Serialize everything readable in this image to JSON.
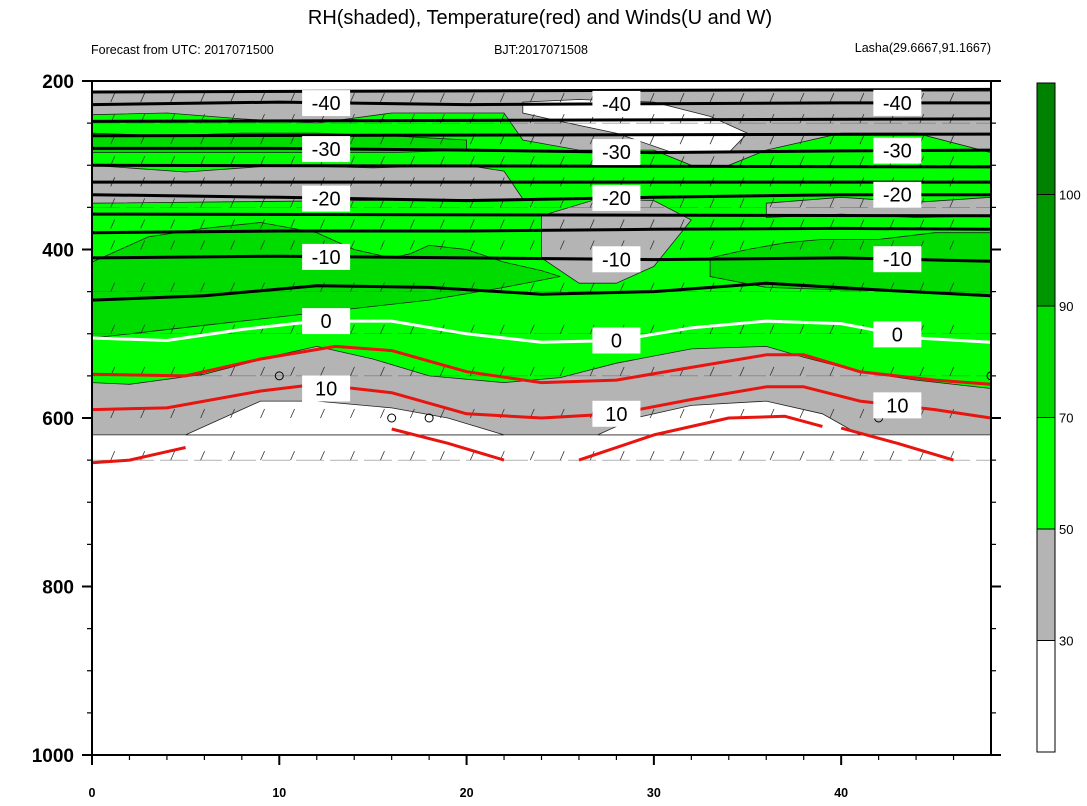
{
  "chart_data": {
    "type": "contour",
    "title": "RH(shaded), Temperature(red) and Winds(U and W)",
    "subtitle_left": "Forecast from UTC: 2017071500",
    "subtitle_center": "BJT:2017071508",
    "subtitle_right": "Lasha(29.6667,91.1667)",
    "xlim": [
      0,
      48
    ],
    "ylim": [
      200,
      1000
    ],
    "y_axis_inverted": true,
    "x_ticks": [
      {
        "value": 0,
        "label": "0"
      },
      {
        "value": 10,
        "label": "10"
      },
      {
        "value": 20,
        "label": "20"
      },
      {
        "value": 30,
        "label": "30"
      },
      {
        "value": 40,
        "label": "40"
      }
    ],
    "y_ticks": [
      {
        "value": 200,
        "label": "200"
      },
      {
        "value": 400,
        "label": "400"
      },
      {
        "value": 600,
        "label": "600"
      },
      {
        "value": 800,
        "label": "800"
      },
      {
        "value": 1000,
        "label": "1000"
      }
    ],
    "grid": true,
    "colorbar": {
      "placement": "right",
      "levels": [
        {
          "value": "30",
          "color": "#ffffff"
        },
        {
          "value": "50",
          "color": "#b4b4b4"
        },
        {
          "value": "70",
          "color": "#00ff00"
        },
        {
          "value": "90",
          "color": "#00dc00"
        },
        {
          "value": "100",
          "color": "#009600"
        }
      ],
      "top_color": "#008200"
    },
    "rh_regions": [
      {
        "color": "#b4b4b4",
        "points": [
          [
            0,
            212
          ],
          [
            48,
            212
          ],
          [
            48,
            620
          ],
          [
            0,
            620
          ]
        ]
      },
      {
        "color": "#00ff00",
        "points": [
          [
            0,
            240
          ],
          [
            4,
            238
          ],
          [
            8,
            245
          ],
          [
            12,
            250
          ],
          [
            16,
            238
          ],
          [
            22,
            238
          ],
          [
            23,
            270
          ],
          [
            26,
            282
          ],
          [
            30,
            282
          ],
          [
            32,
            300
          ],
          [
            34,
            300
          ],
          [
            36,
            282
          ],
          [
            40,
            262
          ],
          [
            44,
            262
          ],
          [
            48,
            285
          ],
          [
            48,
            565
          ],
          [
            44,
            555
          ],
          [
            41,
            545
          ],
          [
            38,
            528
          ],
          [
            36,
            515
          ],
          [
            32,
            518
          ],
          [
            28,
            535
          ],
          [
            25,
            552
          ],
          [
            22,
            558
          ],
          [
            18,
            550
          ],
          [
            15,
            530
          ],
          [
            12,
            515
          ],
          [
            10,
            525
          ],
          [
            6,
            548
          ],
          [
            2,
            560
          ],
          [
            0,
            558
          ]
        ]
      },
      {
        "color": "#b4b4b4",
        "points": [
          [
            0,
            300
          ],
          [
            5,
            308
          ],
          [
            10,
            300
          ],
          [
            15,
            303
          ],
          [
            20,
            300
          ],
          [
            22,
            307
          ],
          [
            23,
            340
          ],
          [
            0,
            345
          ]
        ]
      },
      {
        "color": "#b4b4b4",
        "points": [
          [
            24,
            360
          ],
          [
            27,
            340
          ],
          [
            30,
            342
          ],
          [
            32,
            365
          ],
          [
            30,
            420
          ],
          [
            28,
            440
          ],
          [
            26,
            440
          ],
          [
            24,
            410
          ]
        ]
      },
      {
        "color": "#b4b4b4",
        "points": [
          [
            36,
            345
          ],
          [
            40,
            338
          ],
          [
            44,
            344
          ],
          [
            48,
            338
          ],
          [
            48,
            360
          ],
          [
            44,
            362
          ],
          [
            40,
            358
          ],
          [
            36,
            362
          ]
        ]
      },
      {
        "color": "#00dc00",
        "points": [
          [
            0,
            415
          ],
          [
            3,
            385
          ],
          [
            6,
            375
          ],
          [
            9,
            368
          ],
          [
            12,
            380
          ],
          [
            14,
            400
          ],
          [
            16,
            410
          ],
          [
            17,
            405
          ],
          [
            18,
            395
          ],
          [
            20,
            400
          ],
          [
            22,
            415
          ],
          [
            24,
            425
          ],
          [
            25,
            432
          ],
          [
            22,
            445
          ],
          [
            18,
            460
          ],
          [
            14,
            470
          ],
          [
            10,
            480
          ],
          [
            6,
            490
          ],
          [
            2,
            500
          ],
          [
            0,
            505
          ]
        ]
      },
      {
        "color": "#00dc00",
        "points": [
          [
            33,
            410
          ],
          [
            35,
            400
          ],
          [
            37,
            392
          ],
          [
            39,
            388
          ],
          [
            42,
            388
          ],
          [
            45,
            380
          ],
          [
            48,
            380
          ],
          [
            48,
            455
          ],
          [
            44,
            450
          ],
          [
            40,
            448
          ],
          [
            36,
            445
          ],
          [
            33,
            432
          ]
        ]
      },
      {
        "color": "#00dc00",
        "points": [
          [
            0,
            262
          ],
          [
            4,
            265
          ],
          [
            8,
            262
          ],
          [
            12,
            262
          ],
          [
            16,
            265
          ],
          [
            20,
            270
          ],
          [
            20,
            282
          ],
          [
            16,
            285
          ],
          [
            12,
            285
          ],
          [
            8,
            285
          ],
          [
            4,
            285
          ],
          [
            0,
            285
          ]
        ]
      },
      {
        "color": "#ffffff",
        "points": [
          [
            23,
            225
          ],
          [
            26,
            222
          ],
          [
            30,
            225
          ],
          [
            33,
            242
          ],
          [
            35,
            262
          ],
          [
            34,
            285
          ],
          [
            31,
            285
          ],
          [
            28,
            262
          ],
          [
            25,
            248
          ],
          [
            23,
            238
          ]
        ]
      },
      {
        "color": "#ffffff",
        "points": [
          [
            9,
            580
          ],
          [
            12,
            580
          ],
          [
            16,
            588
          ],
          [
            19,
            600
          ],
          [
            22,
            620
          ],
          [
            5,
            620
          ]
        ]
      },
      {
        "color": "#ffffff",
        "points": [
          [
            27,
            620
          ],
          [
            29,
            600
          ],
          [
            32,
            585
          ],
          [
            36,
            580
          ],
          [
            39,
            595
          ],
          [
            41,
            620
          ]
        ]
      }
    ],
    "temperature_contours": [
      {
        "level": -40,
        "color": "#000000",
        "label": "-40",
        "points": [
          [
            0,
            228
          ],
          [
            10,
            225
          ],
          [
            20,
            228
          ],
          [
            30,
            227
          ],
          [
            40,
            226
          ],
          [
            48,
            226
          ]
        ]
      },
      {
        "level": -40,
        "color": "#000000",
        "label": "",
        "points": [
          [
            0,
            213
          ],
          [
            48,
            210
          ]
        ]
      },
      {
        "level": -40,
        "color": "#000000",
        "label": "",
        "points": [
          [
            0,
            248
          ],
          [
            48,
            245
          ]
        ]
      },
      {
        "level": -30,
        "color": "#000000",
        "label": "-30",
        "points": [
          [
            0,
            280
          ],
          [
            10,
            280
          ],
          [
            20,
            282
          ],
          [
            30,
            285
          ],
          [
            40,
            283
          ],
          [
            48,
            282
          ]
        ]
      },
      {
        "level": -30,
        "color": "#000000",
        "label": "",
        "points": [
          [
            0,
            265
          ],
          [
            48,
            263
          ]
        ]
      },
      {
        "level": -30,
        "color": "#000000",
        "label": "",
        "points": [
          [
            0,
            300
          ],
          [
            48,
            302
          ]
        ]
      },
      {
        "level": -20,
        "color": "#000000",
        "label": "-20",
        "points": [
          [
            0,
            335
          ],
          [
            10,
            338
          ],
          [
            20,
            342
          ],
          [
            30,
            338
          ],
          [
            40,
            335
          ],
          [
            48,
            335
          ]
        ]
      },
      {
        "level": -20,
        "color": "#000000",
        "label": "",
        "points": [
          [
            0,
            320
          ],
          [
            48,
            320
          ]
        ]
      },
      {
        "level": -20,
        "color": "#000000",
        "label": "",
        "points": [
          [
            0,
            358
          ],
          [
            48,
            360
          ]
        ]
      },
      {
        "level": -20,
        "color": "#000000",
        "label": "",
        "points": [
          [
            0,
            380
          ],
          [
            10,
            378
          ],
          [
            20,
            378
          ],
          [
            30,
            376
          ],
          [
            40,
            375
          ],
          [
            48,
            376
          ]
        ]
      },
      {
        "level": -10,
        "color": "#000000",
        "label": "-10",
        "points": [
          [
            0,
            410
          ],
          [
            10,
            408
          ],
          [
            20,
            410
          ],
          [
            30,
            412
          ],
          [
            40,
            410
          ],
          [
            48,
            414
          ]
        ]
      },
      {
        "level": -10,
        "color": "#000000",
        "label": "",
        "points": [
          [
            0,
            460
          ],
          [
            6,
            455
          ],
          [
            12,
            443
          ],
          [
            18,
            445
          ],
          [
            24,
            453
          ],
          [
            30,
            450
          ],
          [
            36,
            440
          ],
          [
            42,
            448
          ],
          [
            48,
            455
          ]
        ]
      },
      {
        "level": 0,
        "color": "#ffffff",
        "label": "0",
        "points": [
          [
            0,
            505
          ],
          [
            4,
            508
          ],
          [
            8,
            495
          ],
          [
            12,
            485
          ],
          [
            16,
            485
          ],
          [
            20,
            500
          ],
          [
            24,
            510
          ],
          [
            28,
            508
          ],
          [
            32,
            493
          ],
          [
            36,
            485
          ],
          [
            40,
            488
          ],
          [
            44,
            505
          ],
          [
            48,
            510
          ]
        ]
      },
      {
        "level": 10,
        "color": "#e8140f",
        "label": "",
        "points": [
          [
            0,
            548
          ],
          [
            5,
            550
          ],
          [
            9,
            530
          ],
          [
            13,
            515
          ],
          [
            16,
            520
          ],
          [
            20,
            545
          ],
          [
            24,
            558
          ],
          [
            28,
            555
          ],
          [
            32,
            540
          ],
          [
            36,
            525
          ],
          [
            38,
            525
          ],
          [
            41,
            545
          ],
          [
            45,
            555
          ],
          [
            48,
            560
          ]
        ]
      },
      {
        "level": 10,
        "color": "#e8140f",
        "label": "10",
        "points": [
          [
            0,
            590
          ],
          [
            4,
            588
          ],
          [
            9,
            568
          ],
          [
            12,
            560
          ],
          [
            16,
            570
          ],
          [
            20,
            595
          ],
          [
            24,
            600
          ],
          [
            28,
            595
          ],
          [
            32,
            578
          ],
          [
            36,
            563
          ],
          [
            38,
            563
          ],
          [
            41,
            580
          ],
          [
            45,
            590
          ],
          [
            48,
            600
          ]
        ]
      },
      {
        "level": 10,
        "color": "#e8140f",
        "label": "",
        "points": [
          [
            0,
            653
          ],
          [
            2,
            650
          ],
          [
            4,
            640
          ],
          [
            5,
            635
          ]
        ]
      },
      {
        "level": 20,
        "color": "#e8140f",
        "label": "",
        "points": [
          [
            16,
            613
          ],
          [
            19,
            630
          ],
          [
            22,
            650
          ]
        ]
      },
      {
        "level": 20,
        "color": "#e8140f",
        "label": "",
        "points": [
          [
            26,
            650
          ],
          [
            30,
            620
          ],
          [
            34,
            600
          ],
          [
            37,
            598
          ],
          [
            39,
            610
          ]
        ]
      },
      {
        "level": 20,
        "color": "#e8140f",
        "label": "",
        "points": [
          [
            40,
            612
          ],
          [
            43,
            630
          ],
          [
            46,
            650
          ]
        ]
      }
    ]
  }
}
